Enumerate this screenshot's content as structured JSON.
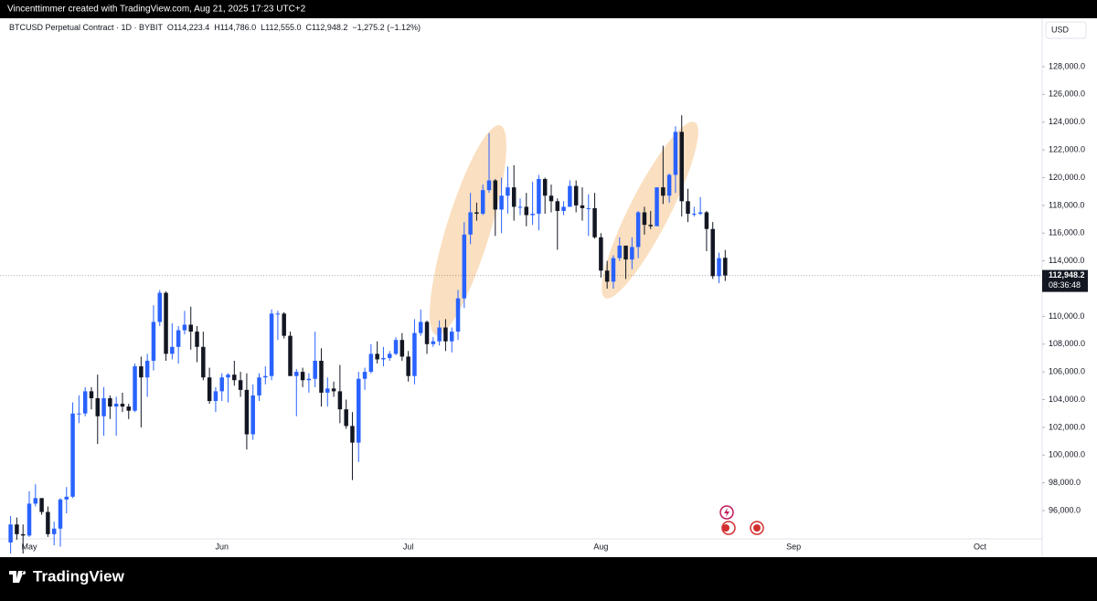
{
  "header": {
    "attribution": "Vincenttimmer created with TradingView.com, Aug 21, 2025 17:23 UTC+2"
  },
  "chart_data": {
    "type": "candlestick",
    "symbol": "BTCUSD Perpetual Contract · 1D · BYBIT",
    "ohlc_legend": {
      "open": "O114,223.4",
      "high": "H114,786.0",
      "low": "L112,555.0",
      "close": "C112,948.2",
      "change": "−1,275.2 (−1.12%)"
    },
    "currency": "USD",
    "categories": [
      null,
      null,
      null,
      "May",
      null,
      null,
      null,
      null,
      null,
      null,
      null,
      null,
      null,
      null,
      null,
      null,
      null,
      null,
      null,
      null,
      null,
      null,
      null,
      null,
      null,
      null,
      null,
      null,
      null,
      null,
      null,
      null,
      null,
      null,
      "Jun",
      null,
      null,
      null,
      null,
      null,
      null,
      null,
      null,
      null,
      null,
      null,
      null,
      null,
      null,
      null,
      null,
      null,
      null,
      null,
      null,
      null,
      null,
      null,
      null,
      null,
      null,
      null,
      null,
      null,
      "Jul",
      null,
      null,
      null,
      null,
      null,
      null,
      null,
      null,
      null,
      null,
      null,
      null,
      null,
      null,
      null,
      null,
      null,
      null,
      null,
      null,
      null,
      null,
      null,
      null,
      null,
      null,
      null,
      null,
      null,
      null,
      "Aug",
      null,
      null,
      null,
      null,
      null,
      null,
      null,
      null,
      null,
      null,
      null,
      null,
      null,
      null,
      null,
      null,
      null,
      null,
      null,
      null,
      null,
      null,
      null,
      null,
      null,
      null,
      null,
      null,
      null,
      null,
      "Sep",
      null,
      null,
      null,
      null,
      null,
      null,
      null,
      null,
      null,
      null,
      null,
      null,
      null,
      null,
      null,
      null,
      null,
      null,
      null,
      null,
      null,
      null,
      null,
      null,
      null,
      null,
      null,
      null,
      null,
      "Oct"
    ],
    "open": [
      93700,
      95000,
      94300,
      94200,
      96500,
      96900,
      95900,
      94300,
      94700,
      96800,
      97000,
      103000,
      103000,
      104600,
      104100,
      102800,
      104100,
      103500,
      103700,
      103500,
      103200,
      106400,
      105600,
      106800,
      109600,
      111700,
      107300,
      107800,
      109000,
      109400,
      108900,
      107800,
      105600,
      103900,
      104600,
      105600,
      105800,
      105400,
      104700,
      101500,
      104300,
      105600,
      105700,
      110200,
      110200,
      108600,
      105700,
      106000,
      105400,
      105500,
      106800,
      104500,
      104800,
      104600,
      103300,
      102100,
      100900,
      105500,
      106000,
      107300,
      106900,
      107000,
      107300,
      108300,
      107100,
      105700,
      108800,
      109600,
      108000,
      108200,
      109200,
      108200,
      108900,
      111300,
      115900,
      117500,
      117400,
      119100,
      119800,
      117700,
      118700,
      119300,
      117900,
      117900,
      117300,
      117400,
      119900,
      118700,
      118300,
      117600,
      117900,
      119400,
      118000,
      117800,
      117800,
      115700,
      113300,
      112500,
      114200,
      115100,
      114100,
      115000,
      117500,
      116600,
      116500,
      119300,
      118700,
      120200,
      123300,
      118300,
      117400,
      117400,
      117500,
      116300,
      112900,
      114223.4,
      null,
      null,
      null,
      null,
      null,
      null,
      null,
      null,
      null,
      null,
      null,
      null,
      null,
      null,
      null,
      null,
      null,
      null,
      null,
      null,
      null,
      null,
      null,
      null,
      null,
      null,
      null,
      null,
      null,
      null,
      null,
      null,
      null,
      null,
      null,
      null,
      null,
      null,
      null,
      null,
      null
    ],
    "high": [
      95600,
      95500,
      95000,
      97400,
      97900,
      96900,
      96300,
      95200,
      96900,
      97700,
      103800,
      104300,
      104900,
      104900,
      105800,
      104900,
      104300,
      104200,
      104500,
      103700,
      106600,
      107100,
      107300,
      110800,
      111900,
      111800,
      109500,
      109300,
      110400,
      110700,
      109300,
      108900,
      106300,
      104900,
      105900,
      105900,
      106800,
      106000,
      105900,
      105100,
      105900,
      106400,
      110500,
      110400,
      110300,
      108900,
      106200,
      106300,
      105900,
      108900,
      107700,
      105600,
      105300,
      106500,
      104000,
      103100,
      106000,
      106300,
      108000,
      108200,
      107800,
      107500,
      108500,
      108800,
      107500,
      109800,
      110500,
      109700,
      108500,
      109700,
      109800,
      109200,
      111900,
      116800,
      118900,
      118200,
      119500,
      123200,
      119900,
      120000,
      120800,
      120900,
      118500,
      118900,
      119700,
      120200,
      120000,
      119500,
      118500,
      118300,
      119800,
      119800,
      119300,
      118800,
      118900,
      116000,
      114000,
      114400,
      115700,
      115100,
      115700,
      117600,
      117900,
      117600,
      119300,
      122300,
      120300,
      123700,
      124500,
      119200,
      117900,
      118600,
      117600,
      116800,
      114600,
      114786.0,
      null,
      null,
      null,
      null,
      null,
      null,
      null,
      null,
      null,
      null,
      null,
      null,
      null,
      null,
      null,
      null,
      null,
      null,
      null,
      null,
      null,
      null,
      null,
      null,
      null,
      null,
      null,
      null,
      null,
      null,
      null,
      null,
      null,
      null,
      null,
      null,
      null,
      null,
      null,
      null,
      null
    ],
    "low": [
      92900,
      93900,
      92900,
      94100,
      96300,
      95700,
      94100,
      93500,
      93400,
      95800,
      96900,
      102300,
      102800,
      103300,
      100800,
      101400,
      102600,
      101400,
      103100,
      102600,
      103100,
      102000,
      104200,
      106100,
      109300,
      106800,
      106900,
      106600,
      108700,
      107600,
      106700,
      105400,
      103700,
      103100,
      103900,
      103800,
      105000,
      104200,
      100400,
      101100,
      103900,
      105100,
      105400,
      108300,
      108400,
      105700,
      102800,
      104900,
      104500,
      104900,
      103500,
      103500,
      104200,
      102300,
      101900,
      98200,
      99500,
      104700,
      105900,
      106600,
      106400,
      106800,
      107200,
      106800,
      105300,
      105100,
      108600,
      107300,
      107800,
      107900,
      107500,
      107400,
      108300,
      110600,
      115200,
      116900,
      117300,
      118900,
      115800,
      116000,
      117400,
      116900,
      117300,
      116500,
      116600,
      116200,
      117400,
      117500,
      114800,
      117300,
      117900,
      117500,
      116900,
      115800,
      115600,
      112800,
      112000,
      112000,
      114000,
      112700,
      113400,
      114200,
      115900,
      116300,
      116500,
      118100,
      118200,
      118900,
      117200,
      116800,
      117200,
      117300,
      114700,
      112700,
      112400,
      112555.0,
      null,
      null,
      null,
      null,
      null,
      null,
      null,
      null,
      null,
      null,
      null,
      null,
      null,
      null,
      null,
      null,
      null,
      null,
      null,
      null,
      null,
      null,
      null,
      null,
      null,
      null,
      null,
      null,
      null,
      null,
      null,
      null,
      null,
      null,
      null,
      null,
      null,
      null,
      null,
      null,
      null
    ],
    "close": [
      95000,
      94300,
      94200,
      96500,
      96900,
      95900,
      94300,
      94700,
      96800,
      97000,
      103000,
      103000,
      104600,
      104100,
      102800,
      104100,
      103500,
      103700,
      103500,
      103200,
      106400,
      105600,
      106800,
      109600,
      111700,
      107300,
      107800,
      109000,
      109400,
      108900,
      107800,
      105600,
      103900,
      104600,
      105600,
      105800,
      105400,
      104700,
      101500,
      104300,
      105600,
      105700,
      110200,
      110200,
      108600,
      105700,
      106000,
      105400,
      105500,
      106800,
      104500,
      104800,
      104600,
      103300,
      102100,
      100900,
      105500,
      106000,
      107300,
      106900,
      107000,
      107300,
      108300,
      107100,
      105700,
      108800,
      109600,
      108000,
      108200,
      109200,
      108200,
      108900,
      111300,
      115900,
      117500,
      117400,
      119100,
      119800,
      117700,
      118700,
      119300,
      117900,
      117900,
      117300,
      117400,
      119900,
      118700,
      118300,
      117600,
      117900,
      119400,
      118000,
      117800,
      117800,
      115700,
      113300,
      112500,
      114200,
      115100,
      114100,
      115000,
      117500,
      116600,
      116500,
      119300,
      118700,
      120200,
      123300,
      118300,
      117400,
      117400,
      117500,
      116300,
      112900,
      114200,
      112948.2,
      null,
      null,
      null,
      null,
      null,
      null,
      null,
      null,
      null,
      null,
      null,
      null,
      null,
      null,
      null,
      null,
      null,
      null,
      null,
      null,
      null,
      null,
      null,
      null,
      null,
      null,
      null,
      null,
      null,
      null,
      null,
      null,
      null,
      null,
      null,
      null,
      null,
      null,
      null,
      null,
      null
    ],
    "up_color": "#2962ff",
    "down_color": "#131722",
    "ylim": [
      93960,
      131160
    ],
    "yticks": [
      {
        "value": 96000,
        "label": "96,000.0"
      },
      {
        "value": 98000,
        "label": "98,000.0"
      },
      {
        "value": 100000,
        "label": "100,000.0"
      },
      {
        "value": 102000,
        "label": "102,000.0"
      },
      {
        "value": 104000,
        "label": "104,000.0"
      },
      {
        "value": 106000,
        "label": "106,000.0"
      },
      {
        "value": 108000,
        "label": "108,000.0"
      },
      {
        "value": 110000,
        "label": "110,000.0"
      },
      {
        "value": 112000,
        "label": "112,000.0"
      },
      {
        "value": 114000,
        "label": "114,000.0"
      },
      {
        "value": 116000,
        "label": "116,000.0"
      },
      {
        "value": 118000,
        "label": "118,000.0"
      },
      {
        "value": 120000,
        "label": "120,000.0"
      },
      {
        "value": 122000,
        "label": "122,000.0"
      },
      {
        "value": 124000,
        "label": "124,000.0"
      },
      {
        "value": 126000,
        "label": "126,000.0"
      },
      {
        "value": 128000,
        "label": "128,000.0"
      }
    ],
    "last_price": {
      "value": 112948.2,
      "label": "112,948.2"
    },
    "countdown": "08:36:48"
  },
  "footer": {
    "logo": "TradingView"
  }
}
